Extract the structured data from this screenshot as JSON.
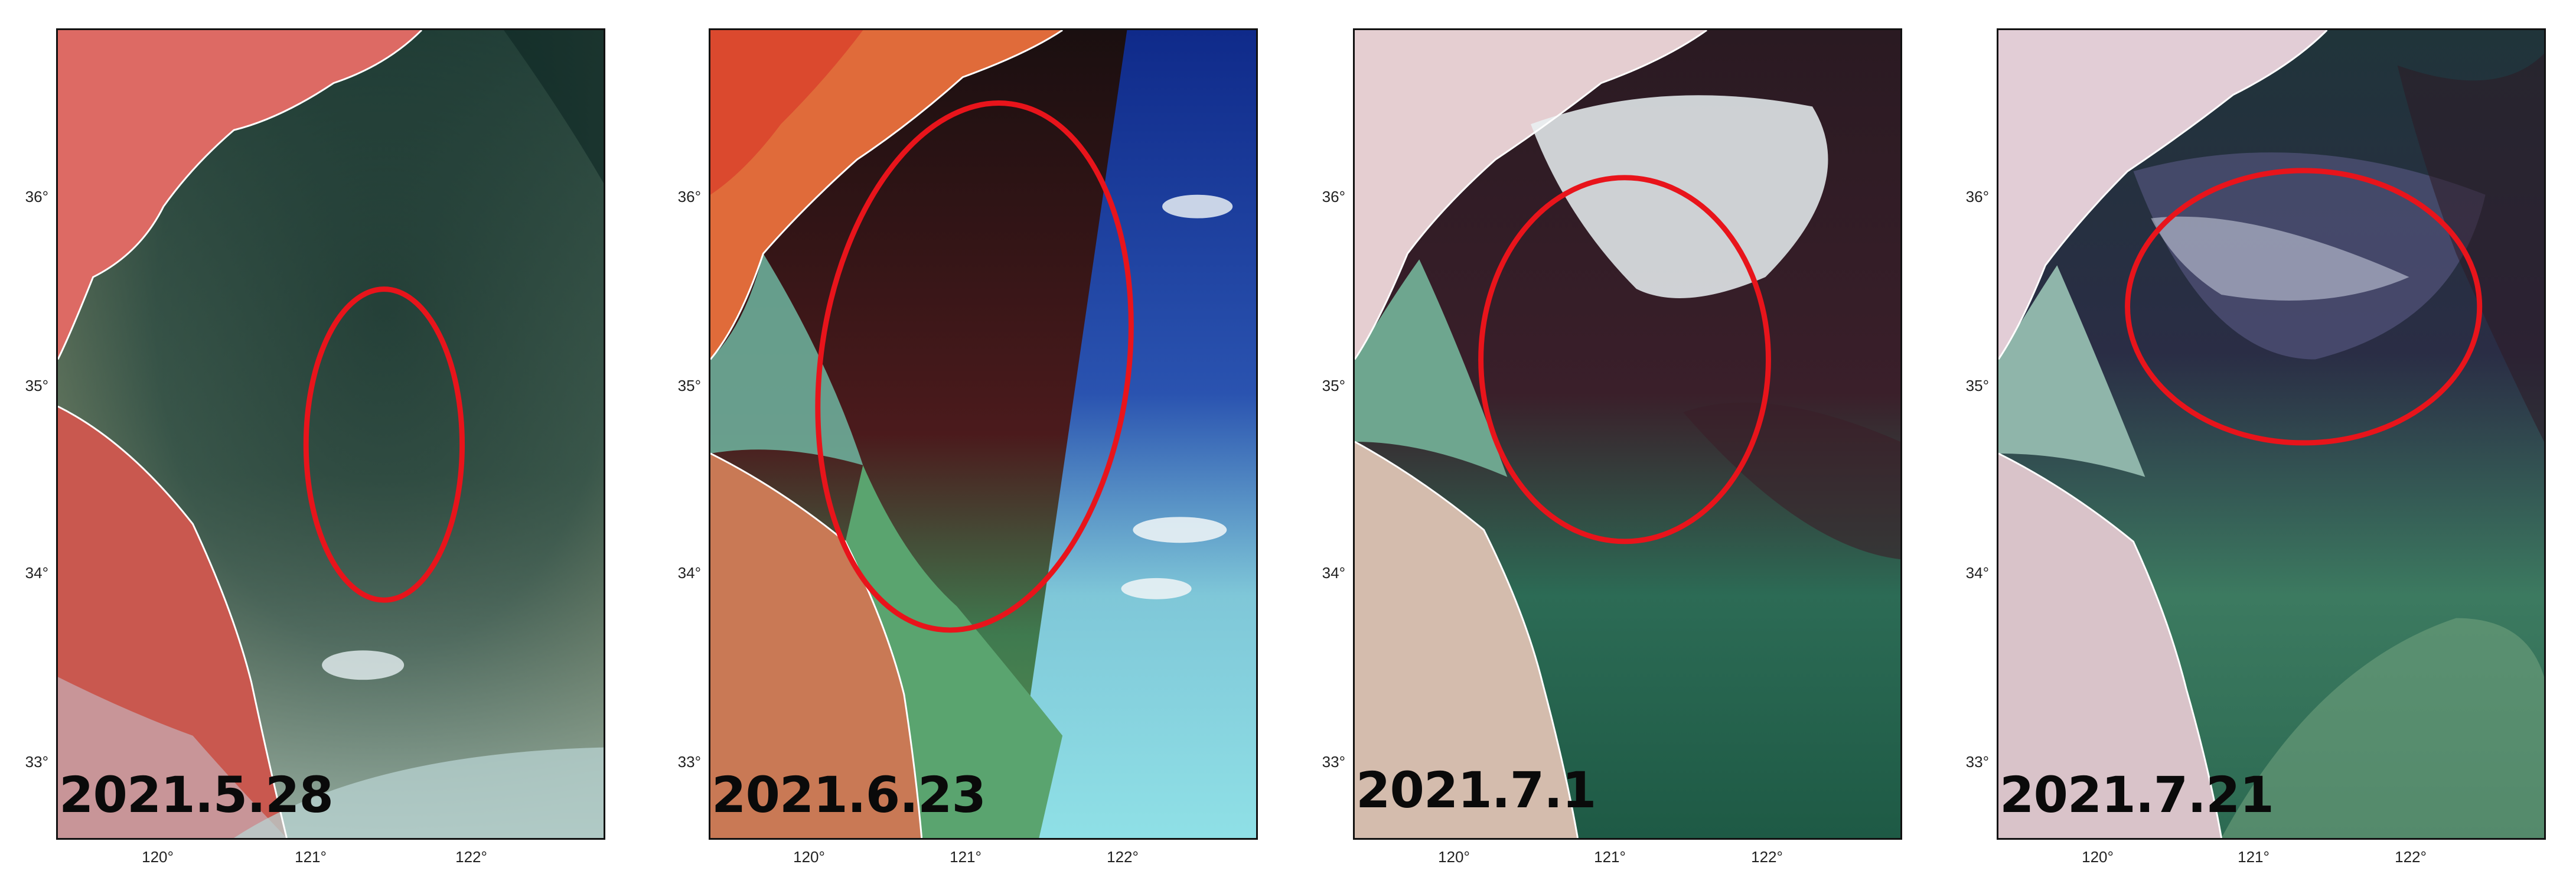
{
  "panels": [
    {
      "date": "2021.5.28",
      "lat_labels": [
        "36°",
        "35°",
        "34°",
        "33°"
      ],
      "lon_labels": [
        "120°",
        "121°",
        "122°"
      ]
    },
    {
      "date": "2021.6.23",
      "lat_labels": [
        "36°",
        "35°",
        "34°",
        "33°"
      ],
      "lon_labels": [
        "120°",
        "121°",
        "122°"
      ]
    },
    {
      "date": "2021.7.1",
      "lat_labels": [
        "36°",
        "35°",
        "34°",
        "33°"
      ],
      "lon_labels": [
        "120°",
        "121°",
        "122°"
      ]
    },
    {
      "date": "2021.7.21",
      "lat_labels": [
        "36°",
        "35°",
        "34°",
        "33°"
      ],
      "lon_labels": [
        "120°",
        "121°",
        "122°"
      ]
    }
  ],
  "colors": {
    "land": "#d9564f",
    "sea_dark": "#1f3a34",
    "sea_turbid": "#6f8f72",
    "cloud": "#e8eef0",
    "highlight_ring": "#e8141b"
  }
}
